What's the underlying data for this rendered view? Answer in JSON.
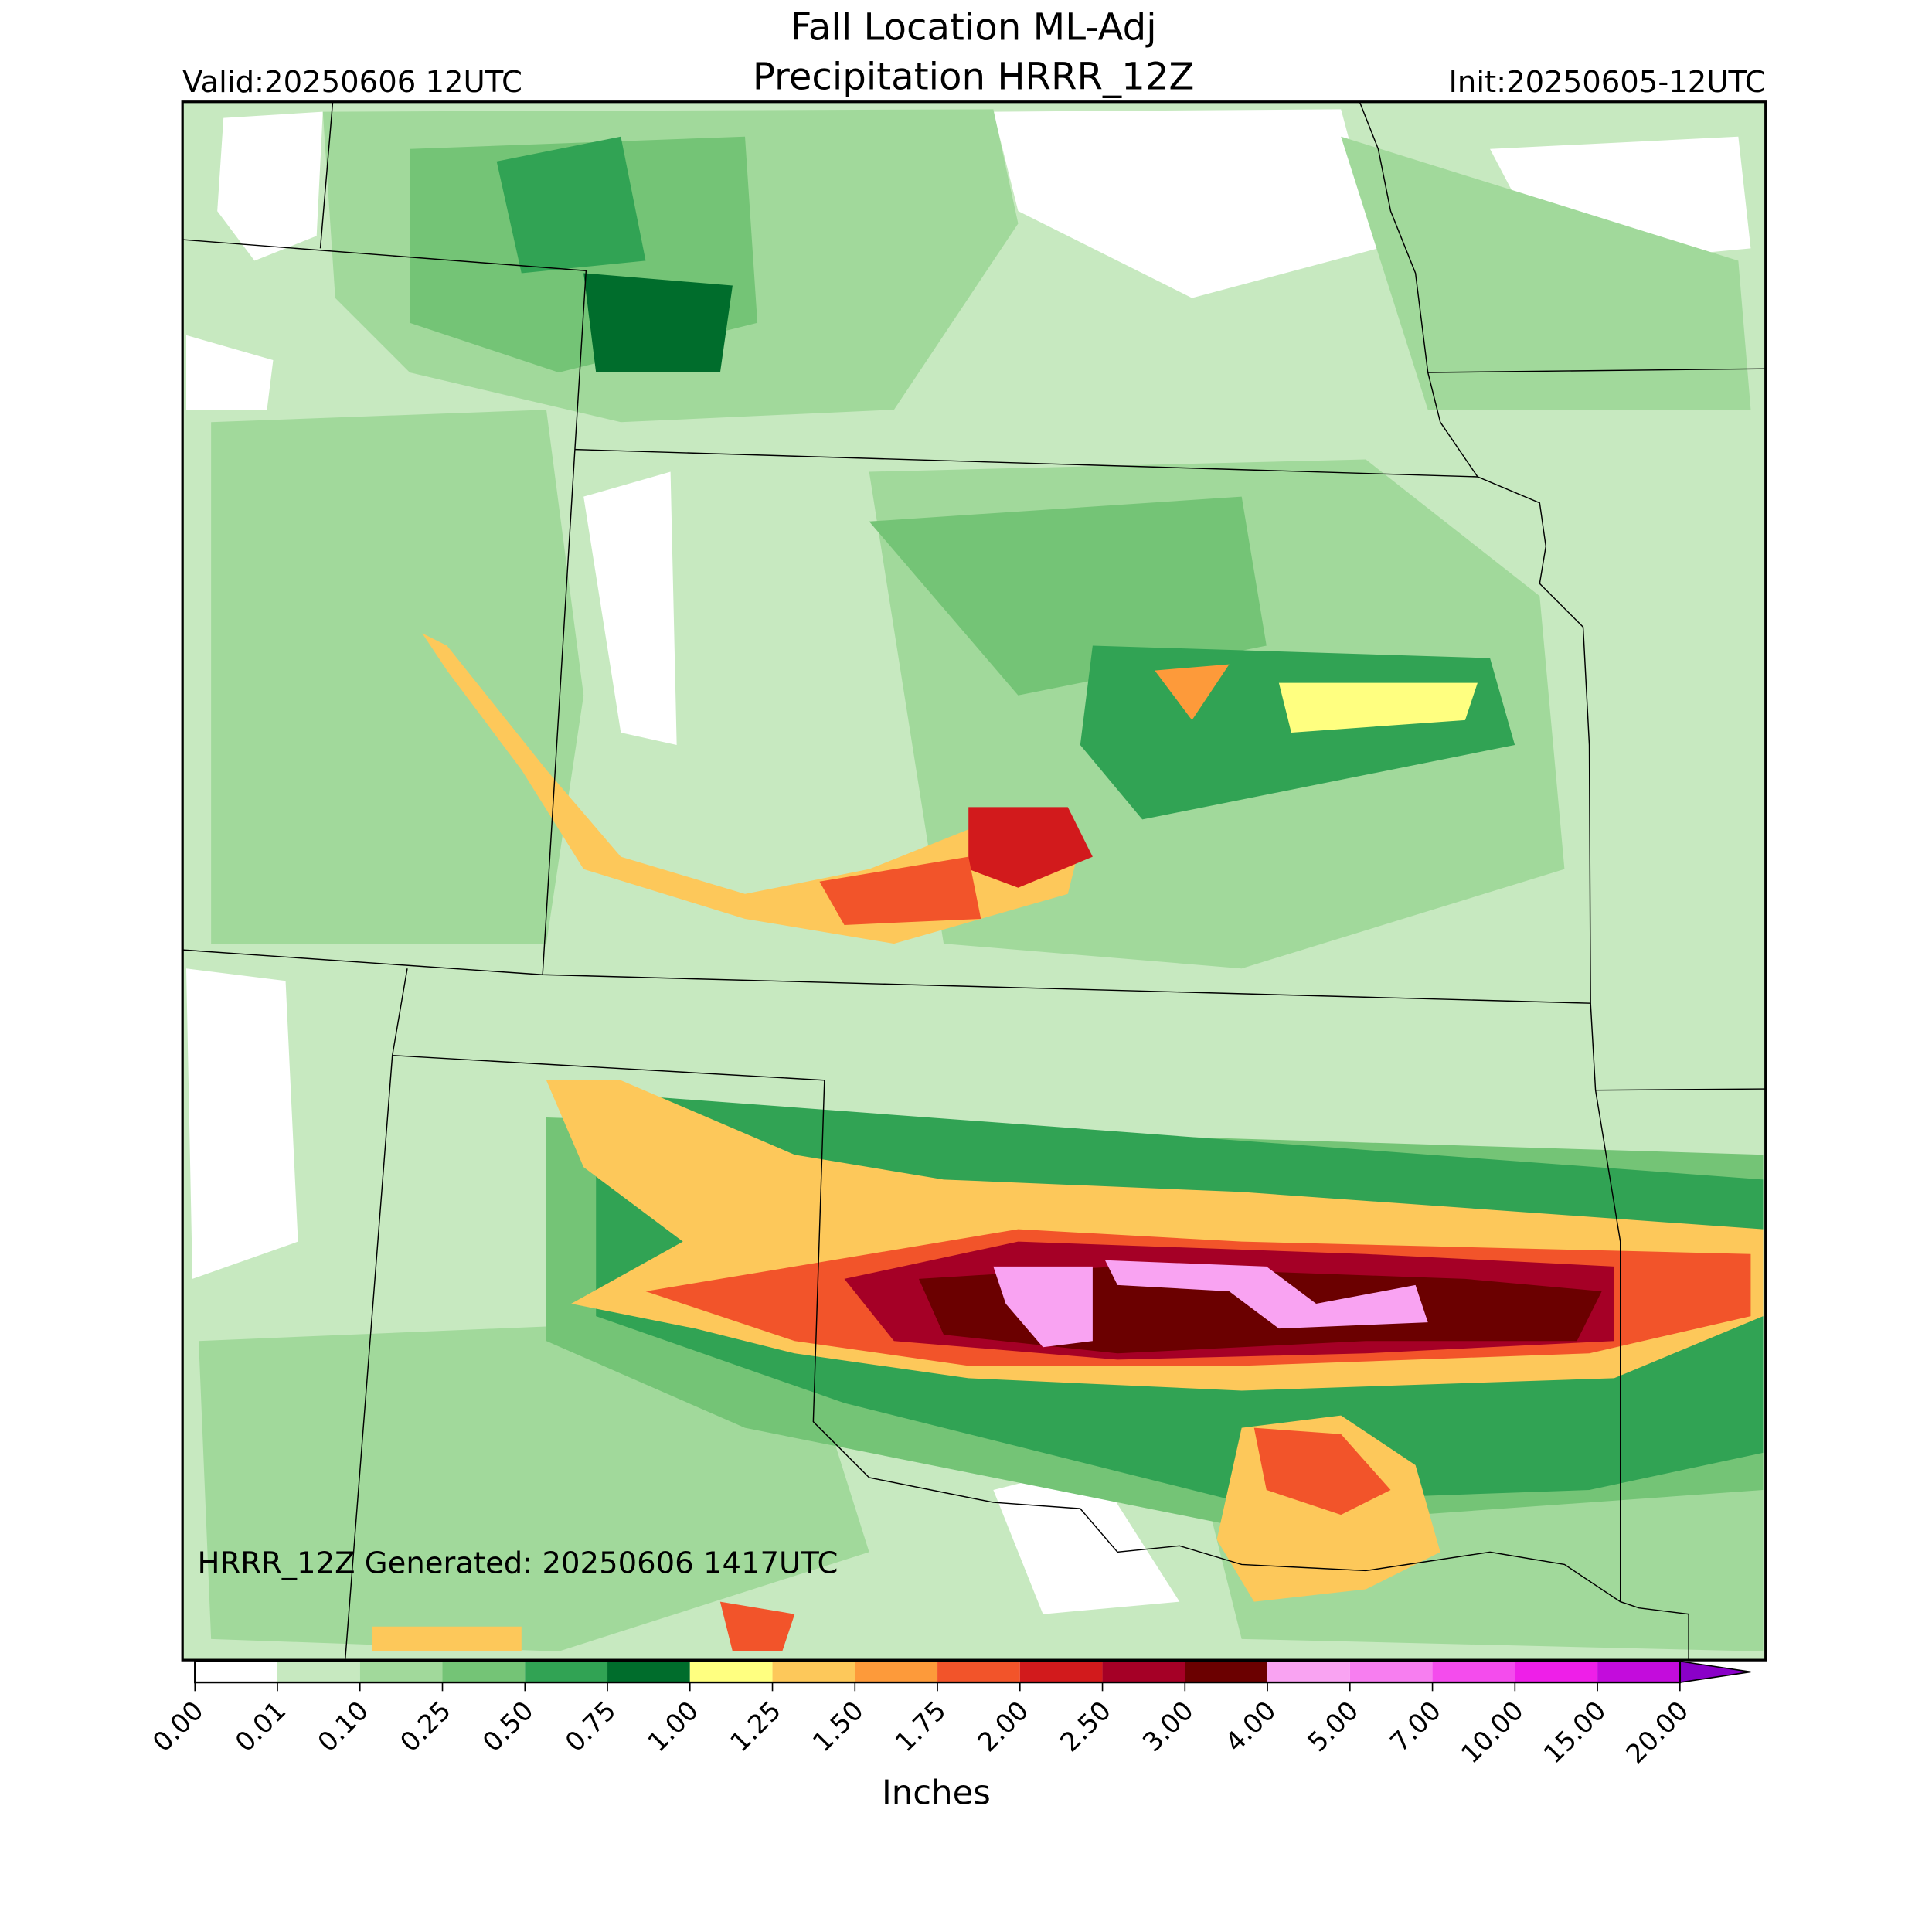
{
  "header": {
    "title": "Fall Location ML-Adj",
    "subtitle": "Precipitation HRRR_12Z",
    "valid": "Valid:20250606 12UTC",
    "init": "Init:20250605-12UTC"
  },
  "map": {
    "footnote": "HRRR_12Z Generated: 20250606 1417UTC"
  },
  "colorbar": {
    "label": "Inches",
    "levels": [
      {
        "value": 0,
        "label": "0.00"
      },
      {
        "value": 0.01,
        "label": "0.01"
      },
      {
        "value": 0.1,
        "label": "0.10"
      },
      {
        "value": 0.25,
        "label": "0.25"
      },
      {
        "value": 0.5,
        "label": "0.50"
      },
      {
        "value": 0.75,
        "label": "0.75"
      },
      {
        "value": 1,
        "label": "1.00"
      },
      {
        "value": 1.25,
        "label": "1.25"
      },
      {
        "value": 1.5,
        "label": "1.50"
      },
      {
        "value": 1.75,
        "label": "1.75"
      },
      {
        "value": 2,
        "label": "2.00"
      },
      {
        "value": 2.5,
        "label": "2.50"
      },
      {
        "value": 3,
        "label": "3.00"
      },
      {
        "value": 4,
        "label": "4.00"
      },
      {
        "value": 5,
        "label": "5.00"
      },
      {
        "value": 7,
        "label": "7.00"
      },
      {
        "value": 10,
        "label": "10.00"
      },
      {
        "value": 15,
        "label": "15.00"
      },
      {
        "value": 20,
        "label": "20.00"
      }
    ],
    "colors": [
      "#ffffff",
      "#c7e9c0",
      "#a1d99b",
      "#74c476",
      "#31a354",
      "#006d2c",
      "#ffff80",
      "#fdc85a",
      "#fd9a3a",
      "#f2542a",
      "#d21a1c",
      "#a50026",
      "#6b0000",
      "#f9a3f2",
      "#f77ef0",
      "#f44ced",
      "#ee1fe8",
      "#c30cdc"
    ],
    "extend_color": "#8a00c8"
  }
}
